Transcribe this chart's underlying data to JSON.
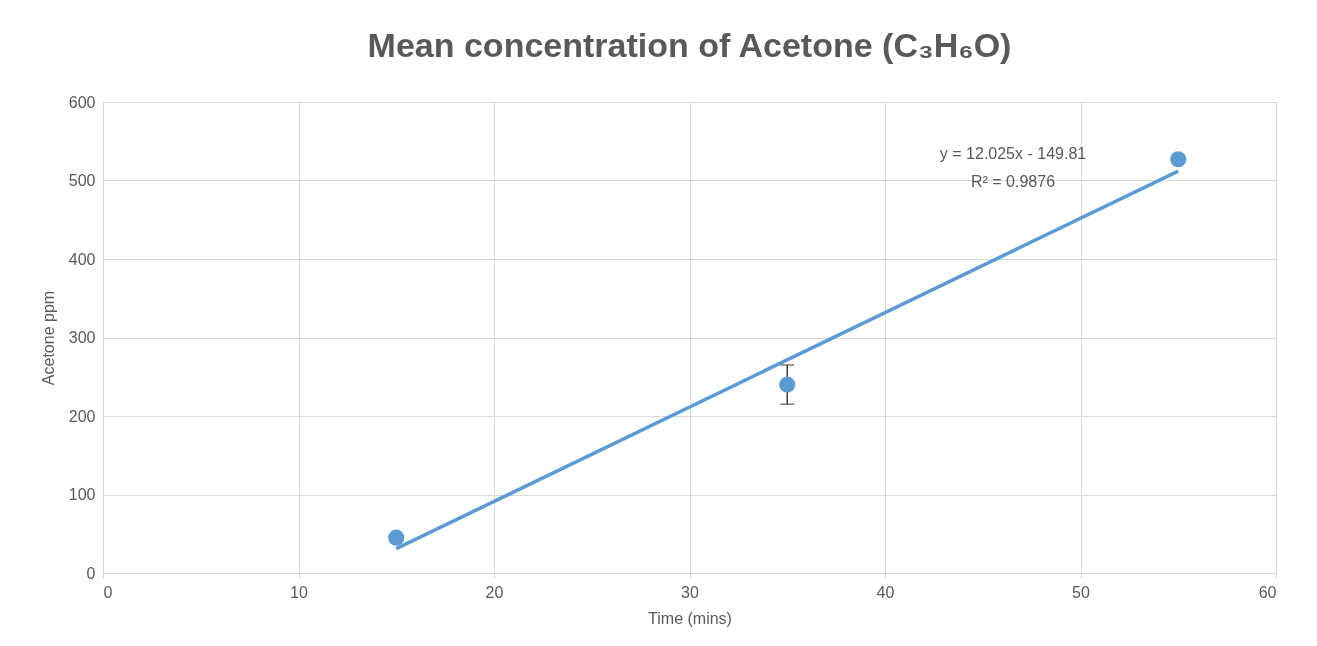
{
  "chart_data": {
    "type": "scatter",
    "title": "Mean concentration of Acetone (C₃H₆O)",
    "xlabel": "Time (mins)",
    "ylabel": "Acetone ppm",
    "x": [
      15,
      35,
      55
    ],
    "series": [
      {
        "color": "#5b9bd5",
        "values": [
          45,
          240,
          527
        ],
        "errors": [
          null,
          [
            215,
            265
          ],
          null
        ],
        "marker": "circle"
      },
      {
        "type": "line",
        "color": "#5b9bd5",
        "x": [
          15,
          55
        ],
        "values": [
          31,
          512
        ],
        "line_style": "solid",
        "marker": "none"
      }
    ],
    "annotations": [
      "y = 12.025x - 149.81",
      "R² = 0.9876"
    ],
    "xlim": [
      0,
      60
    ],
    "xticks": [
      0,
      10,
      20,
      30,
      40,
      50,
      60
    ],
    "ylim": [
      0,
      600
    ],
    "yticks": [
      0,
      100,
      200,
      300,
      400,
      500,
      600
    ],
    "grid": true
  }
}
